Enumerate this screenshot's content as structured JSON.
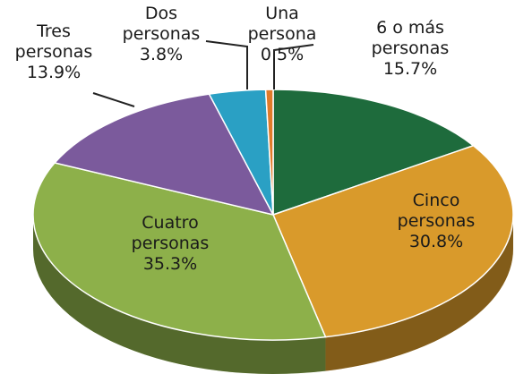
{
  "chart_data": {
    "type": "pie",
    "categories": [
      "6 o más personas",
      "Cinco personas",
      "Cuatro personas",
      "Tres personas",
      "Dos personas",
      "Una persona"
    ],
    "values": [
      15.7,
      30.8,
      35.3,
      13.9,
      3.8,
      0.5
    ],
    "value_labels": [
      "15.7%",
      "30.8%",
      "35.3%",
      "13.9%",
      "3.8%",
      "0.5%"
    ],
    "colors": [
      "#1e6b3c",
      "#d99a2b",
      "#8db04a",
      "#7b5a9c",
      "#2aa0c4",
      "#e07b2a"
    ]
  }
}
